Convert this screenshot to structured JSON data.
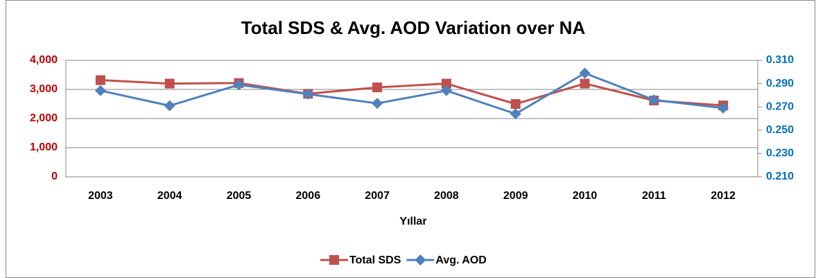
{
  "chart_data": {
    "type": "line",
    "title": "Total SDS & Avg. AOD Variation over NA",
    "x_label": "Yıllar",
    "categories": [
      "2003",
      "2004",
      "2005",
      "2006",
      "2007",
      "2008",
      "2009",
      "2010",
      "2011",
      "2012"
    ],
    "series": [
      {
        "name": "Total SDS",
        "color": "#c0504d",
        "marker": "square",
        "values": [
          3320,
          3200,
          3220,
          2850,
          3070,
          3200,
          2500,
          3200,
          2620,
          2450
        ]
      },
      {
        "name": "Avg. AOD",
        "color": "#4f81bd",
        "marker": "diamond",
        "axis": "y2",
        "values": [
          0.284,
          0.271,
          0.289,
          0.281,
          0.273,
          0.284,
          0.264,
          0.299,
          0.276,
          0.269
        ]
      }
    ],
    "ylim": [
      0,
      4000
    ],
    "yticks": [
      0,
      {
        "value": 1000,
        "label": "1,000"
      },
      {
        "value": 2000,
        "label": "2,000"
      },
      {
        "value": 3000,
        "label": "3,000"
      },
      {
        "value": 4000,
        "label": "4,000"
      }
    ],
    "y2lim": [
      0.21,
      0.31
    ],
    "y2ticks": [
      {
        "value": 0.21,
        "label": "0.210"
      },
      {
        "value": 0.23,
        "label": "0.230"
      },
      {
        "value": 0.25,
        "label": "0.250"
      },
      {
        "value": 0.27,
        "label": "0.270"
      },
      {
        "value": 0.29,
        "label": "0.290"
      },
      {
        "value": 0.31,
        "label": "0.310"
      }
    ],
    "grid": true,
    "legend": "bottom"
  }
}
